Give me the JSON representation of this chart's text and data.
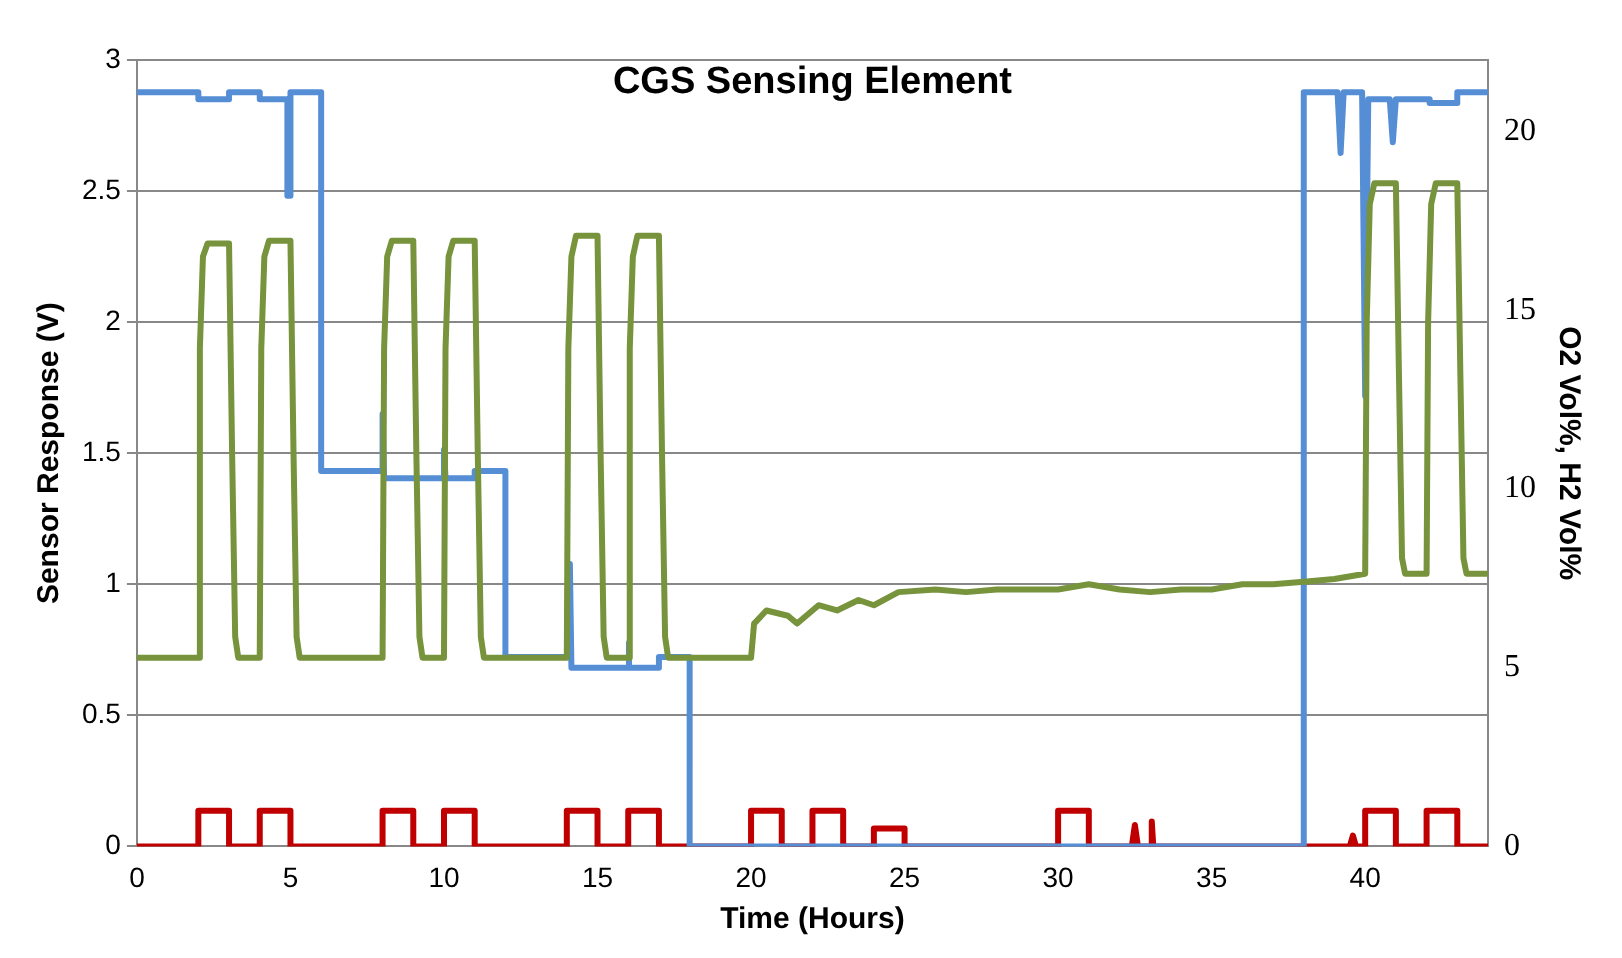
{
  "chart_data": {
    "type": "line",
    "title": "CGS Sensing Element",
    "xlabel": "Time (Hours)",
    "ylabel": "Sensor Response (V)",
    "y2label": "O2 Vol%, H2 Vol%",
    "xlim": [
      0,
      44
    ],
    "xticks": [
      0,
      5,
      10,
      15,
      20,
      25,
      30,
      35,
      40
    ],
    "ylim": [
      0,
      3
    ],
    "yticks": [
      0,
      0.5,
      1,
      1.5,
      2,
      2.5,
      3
    ],
    "y2lim": [
      0,
      22
    ],
    "y2ticks": [
      0,
      5,
      10,
      15,
      20
    ],
    "grid": "y",
    "legend": false,
    "marker": "none",
    "line_style": "solid",
    "series": [
      {
        "color": "#77933c",
        "x": [
          0,
          2,
          2.05,
          2.15,
          2.3,
          3,
          3.1,
          3.2,
          3.3,
          4,
          4.05,
          4.15,
          4.3,
          5,
          5.1,
          5.2,
          5.3,
          8,
          8.05,
          8.15,
          8.3,
          9,
          9.1,
          9.2,
          9.3,
          10,
          10.05,
          10.15,
          10.3,
          11,
          11.1,
          11.2,
          11.3,
          14,
          14.05,
          14.15,
          14.3,
          15,
          15.1,
          15.2,
          15.3,
          16,
          16.05,
          16.15,
          16.3,
          17,
          17.1,
          17.2,
          17.3,
          20,
          20.1,
          20.5,
          21.2,
          21.5,
          22.2,
          22.8,
          23.5,
          24,
          24.8,
          26,
          27,
          28,
          29,
          30,
          31,
          32,
          33,
          34,
          35,
          36,
          37,
          38,
          39,
          40,
          40.05,
          40.15,
          40.3,
          41,
          41.1,
          41.2,
          41.3,
          42,
          42.05,
          42.15,
          42.3,
          43,
          43.1,
          43.2,
          43.3,
          44
        ],
        "values": [
          0.72,
          0.72,
          1.9,
          2.25,
          2.3,
          2.3,
          1.5,
          0.8,
          0.72,
          0.72,
          1.9,
          2.25,
          2.31,
          2.31,
          1.5,
          0.8,
          0.72,
          0.72,
          1.9,
          2.25,
          2.31,
          2.31,
          1.5,
          0.8,
          0.72,
          0.72,
          1.9,
          2.25,
          2.31,
          2.31,
          1.5,
          0.8,
          0.72,
          0.72,
          1.9,
          2.25,
          2.33,
          2.33,
          1.5,
          0.8,
          0.72,
          0.72,
          1.9,
          2.25,
          2.33,
          2.33,
          1.5,
          0.8,
          0.72,
          0.72,
          0.85,
          0.9,
          0.88,
          0.85,
          0.92,
          0.9,
          0.94,
          0.92,
          0.97,
          0.98,
          0.97,
          0.98,
          0.98,
          0.98,
          1.0,
          0.98,
          0.97,
          0.98,
          0.98,
          1.0,
          1.0,
          1.01,
          1.02,
          1.04,
          2.0,
          2.45,
          2.53,
          2.53,
          1.8,
          1.1,
          1.04,
          1.04,
          2.0,
          2.45,
          2.53,
          2.53,
          1.8,
          1.1,
          1.04,
          1.04
        ]
      },
      {
        "color": "#558ed5",
        "axis": "y2",
        "x": [
          0,
          2,
          2,
          3,
          3,
          4,
          4,
          4.9,
          4.9,
          5,
          5,
          6,
          6,
          8,
          8,
          8.05,
          10,
          10,
          10.05,
          11,
          11,
          12,
          12,
          14.1,
          14.1,
          14.15,
          16,
          16,
          16.05,
          17,
          17,
          18,
          18,
          38,
          38,
          39.1,
          39.2,
          39.3,
          39.9,
          40,
          40.1,
          40.8,
          40.9,
          41,
          42.1,
          42.1,
          43,
          43,
          44
        ],
        "values": [
          21.1,
          21.1,
          20.9,
          20.9,
          21.1,
          21.1,
          20.9,
          20.9,
          18.2,
          18.2,
          21.1,
          21.1,
          10.5,
          10.5,
          12.1,
          10.3,
          10.3,
          11.1,
          10.3,
          10.3,
          10.5,
          10.5,
          5.3,
          5.3,
          7.9,
          5.0,
          5.0,
          5.7,
          5.0,
          5.0,
          5.3,
          5.3,
          0,
          0,
          21.1,
          21.1,
          19.4,
          21.1,
          21.1,
          12.6,
          20.9,
          20.9,
          19.7,
          20.9,
          20.9,
          20.8,
          20.8,
          21.1,
          21.1
        ]
      },
      {
        "color": "#c00000",
        "axis": "y2",
        "x": [
          0,
          2,
          2,
          3,
          3,
          4,
          4,
          5,
          5,
          8,
          8,
          9,
          9,
          10,
          10,
          11,
          11,
          14,
          14,
          15,
          15,
          16,
          16,
          17,
          17,
          20,
          20,
          21,
          21,
          22,
          22,
          23,
          23,
          24,
          24,
          25,
          25,
          30,
          30,
          31,
          31,
          32.4,
          32.5,
          32.6,
          33,
          33.05,
          33.1,
          39.5,
          39.6,
          39.7,
          40,
          40,
          41,
          41,
          42,
          42,
          43,
          43,
          44
        ],
        "values": [
          0,
          0,
          1,
          1,
          0,
          0,
          1,
          1,
          0,
          0,
          1,
          1,
          0,
          0,
          1,
          1,
          0,
          0,
          1,
          1,
          0,
          0,
          1,
          1,
          0,
          0,
          1,
          1,
          0,
          0,
          1,
          1,
          0,
          0,
          0.5,
          0.5,
          0,
          0,
          1,
          1,
          0,
          0,
          0.6,
          0,
          0,
          0.7,
          0,
          0,
          0.3,
          0,
          0,
          1,
          1,
          0,
          0,
          1,
          1,
          0,
          0
        ]
      }
    ]
  }
}
